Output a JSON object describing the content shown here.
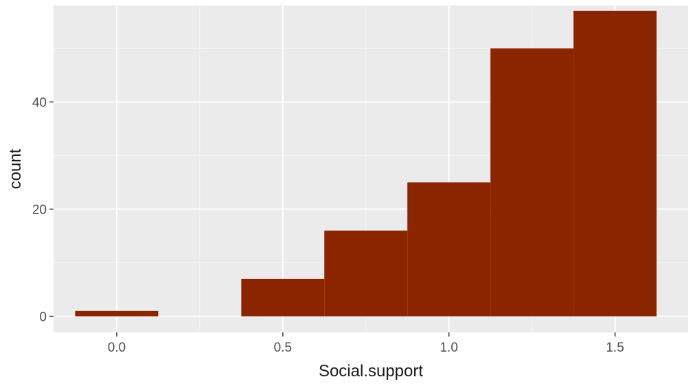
{
  "chart_data": {
    "type": "bar",
    "subtype": "histogram",
    "xlabel": "Social.support",
    "ylabel": "count",
    "xlim": [
      -0.19,
      1.72
    ],
    "ylim": [
      -3,
      58
    ],
    "x_ticks": [
      {
        "value": 0.0,
        "label": "0.0"
      },
      {
        "value": 0.5,
        "label": "0.5"
      },
      {
        "value": 1.0,
        "label": "1.0"
      },
      {
        "value": 1.5,
        "label": "1.5"
      }
    ],
    "y_ticks": [
      {
        "value": 0,
        "label": "0"
      },
      {
        "value": 20,
        "label": "20"
      },
      {
        "value": 40,
        "label": "40"
      }
    ],
    "bin_width": 0.25,
    "bins": [
      {
        "x_start": -0.125,
        "x_end": 0.125,
        "count": 1
      },
      {
        "x_start": 0.125,
        "x_end": 0.375,
        "count": 0
      },
      {
        "x_start": 0.375,
        "x_end": 0.625,
        "count": 7
      },
      {
        "x_start": 0.625,
        "x_end": 0.875,
        "count": 16
      },
      {
        "x_start": 0.875,
        "x_end": 1.125,
        "count": 25
      },
      {
        "x_start": 1.125,
        "x_end": 1.375,
        "count": 50
      },
      {
        "x_start": 1.375,
        "x_end": 1.625,
        "count": 57
      }
    ],
    "grid": true,
    "legend": "none",
    "colors": {
      "bar_fill": "#8B2500",
      "panel_background": "#EBEBEB",
      "grid_major": "#FFFFFF",
      "grid_minor": "#F5F5F5",
      "tick_text": "#4D4D4D",
      "title_text": "#1A1A1A"
    }
  }
}
